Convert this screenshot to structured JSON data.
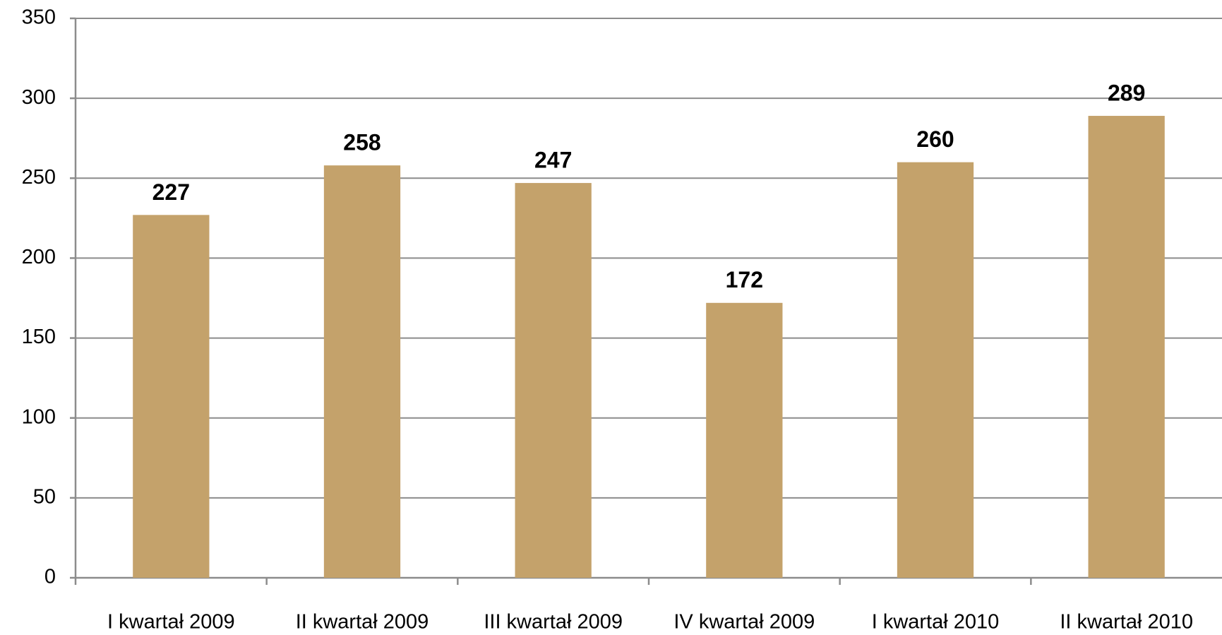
{
  "chart_data": {
    "type": "bar",
    "categories": [
      "I kwartał 2009",
      "II kwartał 2009",
      "III kwartał 2009",
      "IV kwartał 2009",
      "I kwartał 2010",
      "II kwartał 2010"
    ],
    "values": [
      227,
      258,
      247,
      172,
      260,
      289
    ],
    "color": "#c4a26b",
    "ylim": [
      0,
      350
    ],
    "yticks": [
      0,
      50,
      100,
      150,
      200,
      250,
      300,
      350
    ],
    "grid": true
  }
}
